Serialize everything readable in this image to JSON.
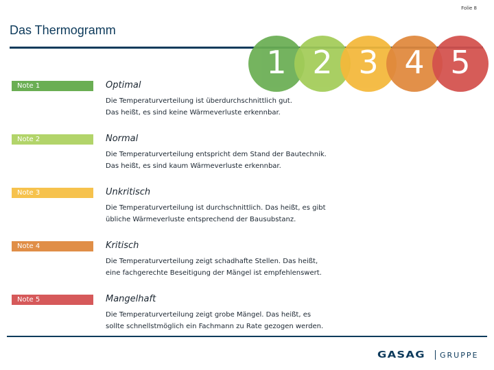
{
  "slide_number": "Folie 8",
  "title": "Das Thermogramm",
  "scale": [
    {
      "label": "1",
      "color": "#6aae53"
    },
    {
      "label": "2",
      "color": "#a3cc58"
    },
    {
      "label": "3",
      "color": "#f4b83a"
    },
    {
      "label": "4",
      "color": "#e0883c"
    },
    {
      "label": "5",
      "color": "#d3504c"
    }
  ],
  "grades": [
    {
      "badge": "Note 1",
      "color": "#6aae53",
      "title": "Optimal",
      "lines": [
        "Die Temperaturverteilung ist überdurchschnittlich gut.",
        "Das heißt, es sind keine Wärmeverluste erkennbar."
      ]
    },
    {
      "badge": "Note 2",
      "color": "#b2d46a",
      "title": "Normal",
      "lines": [
        "Die Temperaturverteilung entspricht dem Stand der Bautechnik.",
        "Das heißt, es sind kaum Wärmeverluste erkennbar."
      ]
    },
    {
      "badge": "Note 3",
      "color": "#f6c24d",
      "title": "Unkritisch",
      "lines": [
        "Die Temperaturverteilung ist durchschnittlich. Das heißt, es gibt",
        "übliche Wärmeverluste entsprechend der Bausubstanz."
      ]
    },
    {
      "badge": "Note 4",
      "color": "#e08e47",
      "title": "Kritisch",
      "lines": [
        "Die Temperaturverteilung zeigt schadhafte Stellen. Das heißt,",
        "eine fachgerechte Beseitigung der Mängel ist empfehlenswert."
      ]
    },
    {
      "badge": "Note 5",
      "color": "#d6595a",
      "title": "Mangelhaft",
      "lines": [
        "Die Temperaturverteilung zeigt grobe Mängel. Das heißt, es",
        "sollte schnellstmöglich ein Fachmann zu Rate gezogen werden."
      ]
    }
  ],
  "footer": {
    "brand": "GASAG",
    "group": "GRUPPE"
  }
}
